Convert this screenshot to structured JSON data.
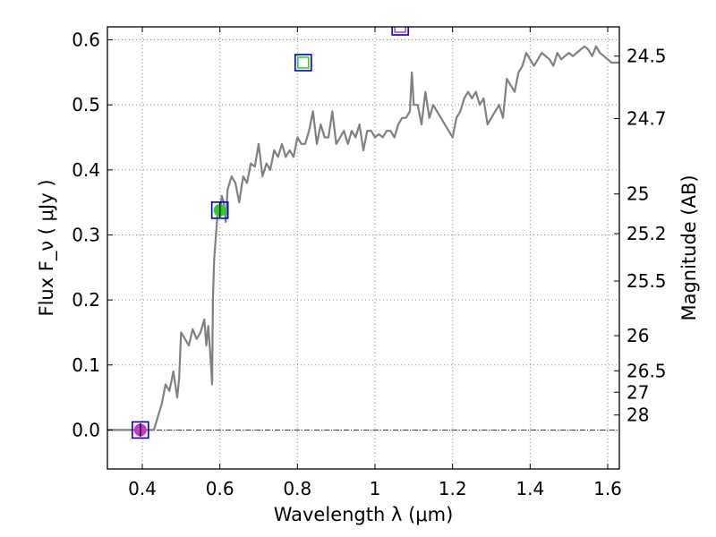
{
  "chart_data": {
    "type": "line",
    "title": "",
    "xlabel": "Wavelength  λ (μm)",
    "ylabel": "Flux  F_ν  ( μJy )",
    "y2label": "Magnitude (AB)",
    "xlim": [
      0.31,
      1.63
    ],
    "ylim": [
      -0.06,
      0.62
    ],
    "grid": true,
    "x_ticks": [
      0.4,
      0.6,
      0.8,
      1.0,
      1.2,
      1.4,
      1.6
    ],
    "x_tick_labels": [
      "0.4",
      "0.6",
      "0.8",
      "1",
      "1.2",
      "1.4",
      "1.6"
    ],
    "y_ticks": [
      0.0,
      0.1,
      0.2,
      0.3,
      0.4,
      0.5,
      0.6
    ],
    "y_tick_labels": [
      "0.0",
      "0.1",
      "0.2",
      "0.3",
      "0.4",
      "0.5",
      "0.6"
    ],
    "y2_ticks": [
      {
        "label": "24.5",
        "flux": 0.575
      },
      {
        "label": "24.7",
        "flux": 0.479
      },
      {
        "label": "25",
        "flux": 0.363
      },
      {
        "label": "25.2",
        "flux": 0.302
      },
      {
        "label": "25.5",
        "flux": 0.229
      },
      {
        "label": "26",
        "flux": 0.145
      },
      {
        "label": "26.5",
        "flux": 0.091
      },
      {
        "label": "27",
        "flux": 0.058
      },
      {
        "label": "28",
        "flux": 0.023
      }
    ],
    "reference_line_y": 0.0,
    "series": [
      {
        "color": "#808080",
        "x": [
          0.31,
          0.33,
          0.36,
          0.39,
          0.41,
          0.43,
          0.44,
          0.45,
          0.46,
          0.47,
          0.48,
          0.49,
          0.495,
          0.5,
          0.51,
          0.52,
          0.53,
          0.54,
          0.55,
          0.56,
          0.565,
          0.57,
          0.575,
          0.58,
          0.582,
          0.585,
          0.59,
          0.595,
          0.6,
          0.605,
          0.61,
          0.615,
          0.62,
          0.63,
          0.64,
          0.65,
          0.66,
          0.67,
          0.68,
          0.69,
          0.7,
          0.71,
          0.72,
          0.73,
          0.74,
          0.75,
          0.76,
          0.77,
          0.78,
          0.79,
          0.8,
          0.81,
          0.82,
          0.83,
          0.84,
          0.85,
          0.86,
          0.87,
          0.88,
          0.89,
          0.9,
          0.91,
          0.92,
          0.93,
          0.94,
          0.95,
          0.96,
          0.97,
          0.98,
          0.99,
          1.0,
          1.01,
          1.02,
          1.03,
          1.04,
          1.05,
          1.06,
          1.07,
          1.08,
          1.09,
          1.095,
          1.1,
          1.11,
          1.12,
          1.13,
          1.14,
          1.15,
          1.16,
          1.17,
          1.18,
          1.19,
          1.2,
          1.21,
          1.22,
          1.23,
          1.24,
          1.25,
          1.26,
          1.27,
          1.28,
          1.29,
          1.3,
          1.31,
          1.32,
          1.33,
          1.34,
          1.35,
          1.36,
          1.37,
          1.38,
          1.39,
          1.4,
          1.41,
          1.42,
          1.43,
          1.44,
          1.45,
          1.46,
          1.47,
          1.48,
          1.49,
          1.5,
          1.51,
          1.52,
          1.53,
          1.54,
          1.55,
          1.56,
          1.57,
          1.58,
          1.59,
          1.6,
          1.61,
          1.62,
          1.63
        ],
        "y": [
          0.0,
          0.0,
          0.0,
          0.0,
          0.0,
          0.0,
          0.02,
          0.04,
          0.07,
          0.06,
          0.09,
          0.05,
          0.08,
          0.15,
          0.14,
          0.13,
          0.155,
          0.14,
          0.15,
          0.17,
          0.13,
          0.16,
          0.12,
          0.07,
          0.2,
          0.26,
          0.3,
          0.34,
          0.33,
          0.36,
          0.35,
          0.32,
          0.37,
          0.39,
          0.38,
          0.35,
          0.39,
          0.38,
          0.41,
          0.405,
          0.44,
          0.39,
          0.41,
          0.4,
          0.43,
          0.42,
          0.44,
          0.42,
          0.43,
          0.42,
          0.45,
          0.44,
          0.44,
          0.46,
          0.49,
          0.44,
          0.47,
          0.45,
          0.45,
          0.49,
          0.44,
          0.45,
          0.46,
          0.44,
          0.46,
          0.45,
          0.47,
          0.43,
          0.46,
          0.46,
          0.45,
          0.455,
          0.45,
          0.46,
          0.46,
          0.45,
          0.47,
          0.48,
          0.48,
          0.49,
          0.55,
          0.5,
          0.5,
          0.47,
          0.52,
          0.48,
          0.5,
          0.49,
          0.48,
          0.47,
          0.46,
          0.45,
          0.48,
          0.49,
          0.51,
          0.52,
          0.51,
          0.52,
          0.5,
          0.51,
          0.47,
          0.48,
          0.49,
          0.5,
          0.48,
          0.54,
          0.53,
          0.52,
          0.55,
          0.56,
          0.58,
          0.57,
          0.56,
          0.57,
          0.58,
          0.575,
          0.57,
          0.56,
          0.58,
          0.57,
          0.575,
          0.58,
          0.575,
          0.58,
          0.585,
          0.59,
          0.585,
          0.575,
          0.59,
          0.58,
          0.575,
          0.57,
          0.565,
          0.565,
          0.565
        ]
      }
    ],
    "photometry": [
      {
        "x": 0.395,
        "y": 0.0,
        "marker": "circle",
        "fill": "#cc33cc",
        "err": 0.01,
        "box": true
      },
      {
        "x": 0.6,
        "y": 0.338,
        "marker": "circle",
        "fill": "#2ecc2e",
        "err": 0.012,
        "box": true
      },
      {
        "x": 0.815,
        "y": 0.565,
        "marker": "square-open",
        "fill": "#2ecc2e",
        "box": true
      },
      {
        "x": 1.065,
        "y": 0.62,
        "marker": "square-open",
        "fill": "#cc33cc",
        "box": true
      }
    ],
    "colors": {
      "spectrum": "#808080",
      "box": "#0000cc",
      "grid": "#888888",
      "errorbar": "#000000"
    }
  }
}
